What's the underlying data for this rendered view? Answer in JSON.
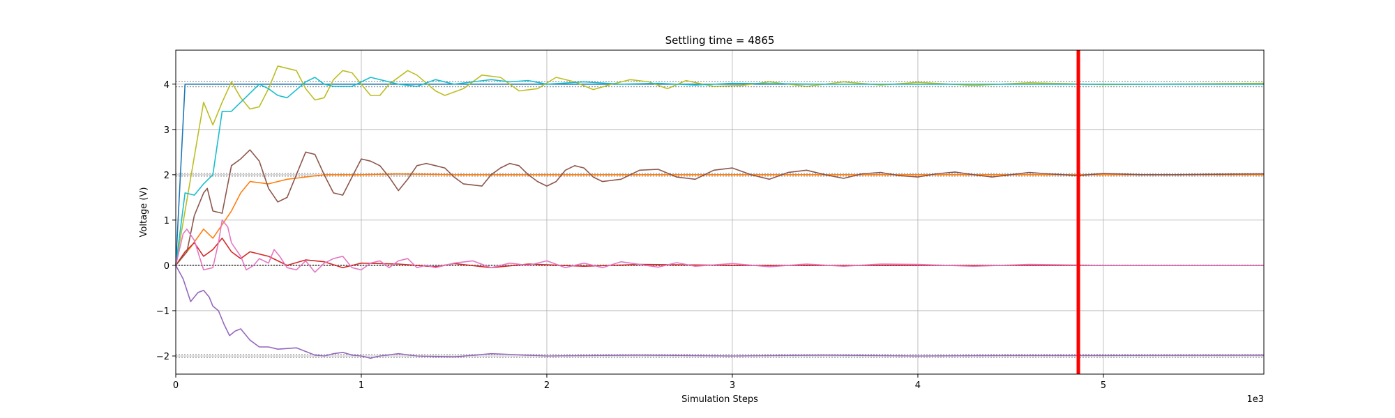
{
  "chart_data": {
    "type": "line",
    "title": "Settling time = 4865",
    "xlabel": "Simulation Steps",
    "ylabel": "Voltage (V)",
    "x_multiplier_label": "1e3",
    "xlim": [
      0,
      5865
    ],
    "ylim": [
      -2.4,
      4.75
    ],
    "xticks": [
      0,
      1000,
      2000,
      3000,
      4000,
      5000
    ],
    "xtick_labels": [
      "0",
      "1",
      "2",
      "3",
      "4",
      "5"
    ],
    "yticks": [
      -2,
      -1,
      0,
      1,
      2,
      3,
      4
    ],
    "ytick_labels": [
      "−2",
      "−1",
      "0",
      "1",
      "2",
      "3",
      "4"
    ],
    "grid": true,
    "settling_time": 4865,
    "settling_line_color": "#ff0000",
    "tolerance_bands": [
      {
        "target": 4,
        "low": 3.94,
        "high": 4.06
      },
      {
        "target": 2,
        "low": 1.97,
        "high": 2.03
      },
      {
        "target": 0,
        "low": -0.01,
        "high": 0.01
      },
      {
        "target": -2,
        "low": -2.03,
        "high": -1.97
      }
    ],
    "series": [
      {
        "color": "#1f77b4",
        "points": [
          [
            0,
            0
          ],
          [
            50,
            4
          ],
          [
            5865,
            4
          ]
        ]
      },
      {
        "color": "#ff7f0e",
        "points": [
          [
            0,
            0
          ],
          [
            80,
            0.4
          ],
          [
            150,
            0.8
          ],
          [
            200,
            0.6
          ],
          [
            250,
            0.9
          ],
          [
            300,
            1.2
          ],
          [
            350,
            1.6
          ],
          [
            400,
            1.85
          ],
          [
            500,
            1.8
          ],
          [
            600,
            1.9
          ],
          [
            700,
            1.95
          ],
          [
            800,
            2.0
          ],
          [
            1000,
            2.0
          ],
          [
            1200,
            2.02
          ],
          [
            1500,
            2.0
          ],
          [
            2000,
            2.0
          ],
          [
            3000,
            2.0
          ],
          [
            5865,
            2.0
          ]
        ]
      },
      {
        "color": "#d62728",
        "points": [
          [
            0,
            0
          ],
          [
            50,
            0.3
          ],
          [
            100,
            0.5
          ],
          [
            150,
            0.2
          ],
          [
            200,
            0.35
          ],
          [
            250,
            0.6
          ],
          [
            300,
            0.3
          ],
          [
            350,
            0.15
          ],
          [
            400,
            0.3
          ],
          [
            500,
            0.2
          ],
          [
            600,
            0.0
          ],
          [
            700,
            0.12
          ],
          [
            800,
            0.08
          ],
          [
            900,
            -0.05
          ],
          [
            1000,
            0.05
          ],
          [
            1200,
            0.03
          ],
          [
            1400,
            -0.03
          ],
          [
            1500,
            0.04
          ],
          [
            1700,
            -0.05
          ],
          [
            1900,
            0.03
          ],
          [
            2200,
            -0.02
          ],
          [
            2500,
            0.02
          ],
          [
            3000,
            0
          ],
          [
            5865,
            0
          ]
        ]
      },
      {
        "color": "#bcbd22",
        "points": [
          [
            0,
            0
          ],
          [
            150,
            3.6
          ],
          [
            200,
            3.1
          ],
          [
            250,
            3.6
          ],
          [
            300,
            4.05
          ],
          [
            350,
            3.7
          ],
          [
            400,
            3.45
          ],
          [
            450,
            3.5
          ],
          [
            500,
            3.9
          ],
          [
            550,
            4.4
          ],
          [
            650,
            4.3
          ],
          [
            700,
            3.9
          ],
          [
            750,
            3.65
          ],
          [
            800,
            3.7
          ],
          [
            850,
            4.1
          ],
          [
            900,
            4.3
          ],
          [
            950,
            4.25
          ],
          [
            1000,
            4.0
          ],
          [
            1050,
            3.75
          ],
          [
            1100,
            3.75
          ],
          [
            1150,
            4.0
          ],
          [
            1250,
            4.3
          ],
          [
            1300,
            4.2
          ],
          [
            1400,
            3.85
          ],
          [
            1450,
            3.75
          ],
          [
            1550,
            3.9
          ],
          [
            1650,
            4.2
          ],
          [
            1750,
            4.15
          ],
          [
            1850,
            3.85
          ],
          [
            1950,
            3.9
          ],
          [
            2050,
            4.15
          ],
          [
            2150,
            4.05
          ],
          [
            2250,
            3.88
          ],
          [
            2350,
            4.0
          ],
          [
            2450,
            4.1
          ],
          [
            2550,
            4.05
          ],
          [
            2650,
            3.9
          ],
          [
            2750,
            4.08
          ],
          [
            2900,
            3.95
          ],
          [
            3050,
            3.97
          ],
          [
            3200,
            4.05
          ],
          [
            3400,
            3.95
          ],
          [
            3600,
            4.05
          ],
          [
            3800,
            3.98
          ],
          [
            4000,
            4.04
          ],
          [
            4300,
            3.97
          ],
          [
            4600,
            4.03
          ],
          [
            5000,
            3.99
          ],
          [
            5865,
            4.02
          ]
        ]
      },
      {
        "color": "#17becf",
        "points": [
          [
            0,
            0
          ],
          [
            50,
            1.6
          ],
          [
            100,
            1.55
          ],
          [
            150,
            1.8
          ],
          [
            200,
            2.0
          ],
          [
            250,
            3.4
          ],
          [
            300,
            3.4
          ],
          [
            350,
            3.6
          ],
          [
            400,
            3.8
          ],
          [
            450,
            4.0
          ],
          [
            500,
            3.9
          ],
          [
            550,
            3.75
          ],
          [
            600,
            3.7
          ],
          [
            700,
            4.05
          ],
          [
            750,
            4.15
          ],
          [
            800,
            4.0
          ],
          [
            850,
            3.95
          ],
          [
            950,
            3.95
          ],
          [
            1050,
            4.15
          ],
          [
            1200,
            4.0
          ],
          [
            1300,
            3.95
          ],
          [
            1400,
            4.1
          ],
          [
            1500,
            4.0
          ],
          [
            1600,
            4.05
          ],
          [
            1700,
            4.1
          ],
          [
            1800,
            4.05
          ],
          [
            1900,
            4.08
          ],
          [
            2000,
            4.0
          ],
          [
            2200,
            4.05
          ],
          [
            2400,
            4.0
          ],
          [
            2600,
            4.02
          ],
          [
            2800,
            3.98
          ],
          [
            3000,
            4.02
          ],
          [
            3500,
            4.0
          ],
          [
            5865,
            4.0
          ]
        ]
      },
      {
        "color": "#8c564b",
        "points": [
          [
            0,
            0
          ],
          [
            60,
            0.3
          ],
          [
            100,
            1.1
          ],
          [
            150,
            1.6
          ],
          [
            170,
            1.7
          ],
          [
            200,
            1.2
          ],
          [
            250,
            1.15
          ],
          [
            300,
            2.2
          ],
          [
            350,
            2.35
          ],
          [
            400,
            2.55
          ],
          [
            450,
            2.3
          ],
          [
            500,
            1.7
          ],
          [
            550,
            1.4
          ],
          [
            600,
            1.5
          ],
          [
            650,
            2.0
          ],
          [
            700,
            2.5
          ],
          [
            750,
            2.45
          ],
          [
            800,
            2.0
          ],
          [
            850,
            1.6
          ],
          [
            900,
            1.55
          ],
          [
            950,
            1.95
          ],
          [
            1000,
            2.35
          ],
          [
            1050,
            2.3
          ],
          [
            1100,
            2.2
          ],
          [
            1150,
            1.95
          ],
          [
            1200,
            1.65
          ],
          [
            1250,
            1.9
          ],
          [
            1300,
            2.2
          ],
          [
            1350,
            2.25
          ],
          [
            1400,
            2.2
          ],
          [
            1450,
            2.15
          ],
          [
            1500,
            1.95
          ],
          [
            1550,
            1.8
          ],
          [
            1650,
            1.75
          ],
          [
            1700,
            2.0
          ],
          [
            1750,
            2.15
          ],
          [
            1800,
            2.25
          ],
          [
            1850,
            2.2
          ],
          [
            1900,
            2.0
          ],
          [
            1950,
            1.85
          ],
          [
            2000,
            1.75
          ],
          [
            2050,
            1.85
          ],
          [
            2100,
            2.1
          ],
          [
            2150,
            2.2
          ],
          [
            2200,
            2.15
          ],
          [
            2250,
            1.95
          ],
          [
            2300,
            1.85
          ],
          [
            2400,
            1.9
          ],
          [
            2500,
            2.1
          ],
          [
            2600,
            2.12
          ],
          [
            2700,
            1.95
          ],
          [
            2800,
            1.9
          ],
          [
            2900,
            2.1
          ],
          [
            3000,
            2.15
          ],
          [
            3100,
            2.0
          ],
          [
            3200,
            1.9
          ],
          [
            3300,
            2.05
          ],
          [
            3400,
            2.1
          ],
          [
            3500,
            2.0
          ],
          [
            3600,
            1.92
          ],
          [
            3700,
            2.02
          ],
          [
            3800,
            2.05
          ],
          [
            3900,
            1.98
          ],
          [
            4000,
            1.95
          ],
          [
            4100,
            2.02
          ],
          [
            4200,
            2.06
          ],
          [
            4300,
            2.0
          ],
          [
            4400,
            1.95
          ],
          [
            4500,
            2.0
          ],
          [
            4600,
            2.05
          ],
          [
            4700,
            2.02
          ],
          [
            4865,
            1.98
          ],
          [
            5000,
            2.03
          ],
          [
            5200,
            2.0
          ],
          [
            5400,
            2.0
          ],
          [
            5600,
            2.01
          ],
          [
            5865,
            2.02
          ]
        ]
      },
      {
        "color": "#e377c2",
        "points": [
          [
            0,
            0
          ],
          [
            40,
            0.7
          ],
          [
            60,
            0.8
          ],
          [
            100,
            0.55
          ],
          [
            150,
            -0.1
          ],
          [
            200,
            -0.05
          ],
          [
            230,
            0.5
          ],
          [
            250,
            1.0
          ],
          [
            280,
            0.85
          ],
          [
            300,
            0.5
          ],
          [
            350,
            0.2
          ],
          [
            380,
            -0.1
          ],
          [
            420,
            0.0
          ],
          [
            450,
            0.15
          ],
          [
            500,
            0.05
          ],
          [
            530,
            0.35
          ],
          [
            560,
            0.2
          ],
          [
            600,
            -0.05
          ],
          [
            650,
            -0.1
          ],
          [
            700,
            0.1
          ],
          [
            750,
            -0.15
          ],
          [
            800,
            0.05
          ],
          [
            850,
            0.15
          ],
          [
            900,
            0.2
          ],
          [
            950,
            -0.05
          ],
          [
            1000,
            -0.1
          ],
          [
            1050,
            0.05
          ],
          [
            1100,
            0.1
          ],
          [
            1150,
            -0.05
          ],
          [
            1200,
            0.1
          ],
          [
            1250,
            0.15
          ],
          [
            1300,
            -0.05
          ],
          [
            1350,
            0.0
          ],
          [
            1400,
            -0.05
          ],
          [
            1500,
            0.05
          ],
          [
            1600,
            0.1
          ],
          [
            1700,
            -0.05
          ],
          [
            1800,
            0.05
          ],
          [
            1900,
            0.0
          ],
          [
            2000,
            0.1
          ],
          [
            2100,
            -0.05
          ],
          [
            2200,
            0.05
          ],
          [
            2300,
            -0.05
          ],
          [
            2400,
            0.08
          ],
          [
            2500,
            0.02
          ],
          [
            2600,
            -0.04
          ],
          [
            2700,
            0.06
          ],
          [
            2800,
            -0.02
          ],
          [
            3000,
            0.04
          ],
          [
            3200,
            -0.03
          ],
          [
            3400,
            0.03
          ],
          [
            3600,
            -0.02
          ],
          [
            3800,
            0.03
          ],
          [
            4000,
            0.02
          ],
          [
            4300,
            -0.02
          ],
          [
            4600,
            0.02
          ],
          [
            5000,
            0.0
          ],
          [
            5865,
            0.0
          ]
        ]
      },
      {
        "color": "#9467bd",
        "points": [
          [
            0,
            0
          ],
          [
            40,
            -0.3
          ],
          [
            80,
            -0.8
          ],
          [
            120,
            -0.6
          ],
          [
            150,
            -0.55
          ],
          [
            180,
            -0.7
          ],
          [
            200,
            -0.9
          ],
          [
            230,
            -1.0
          ],
          [
            260,
            -1.3
          ],
          [
            290,
            -1.55
          ],
          [
            320,
            -1.45
          ],
          [
            350,
            -1.4
          ],
          [
            400,
            -1.65
          ],
          [
            450,
            -1.8
          ],
          [
            500,
            -1.8
          ],
          [
            550,
            -1.85
          ],
          [
            650,
            -1.82
          ],
          [
            700,
            -1.9
          ],
          [
            750,
            -1.98
          ],
          [
            800,
            -2.0
          ],
          [
            850,
            -1.95
          ],
          [
            900,
            -1.92
          ],
          [
            950,
            -1.98
          ],
          [
            1000,
            -2.0
          ],
          [
            1050,
            -2.05
          ],
          [
            1100,
            -2.0
          ],
          [
            1200,
            -1.95
          ],
          [
            1300,
            -2.0
          ],
          [
            1500,
            -2.02
          ],
          [
            1700,
            -1.95
          ],
          [
            2000,
            -2.0
          ],
          [
            2500,
            -1.98
          ],
          [
            3000,
            -2.0
          ],
          [
            3500,
            -1.98
          ],
          [
            4000,
            -2.0
          ],
          [
            4500,
            -1.99
          ],
          [
            5000,
            -1.99
          ],
          [
            5865,
            -1.98
          ]
        ]
      }
    ]
  }
}
